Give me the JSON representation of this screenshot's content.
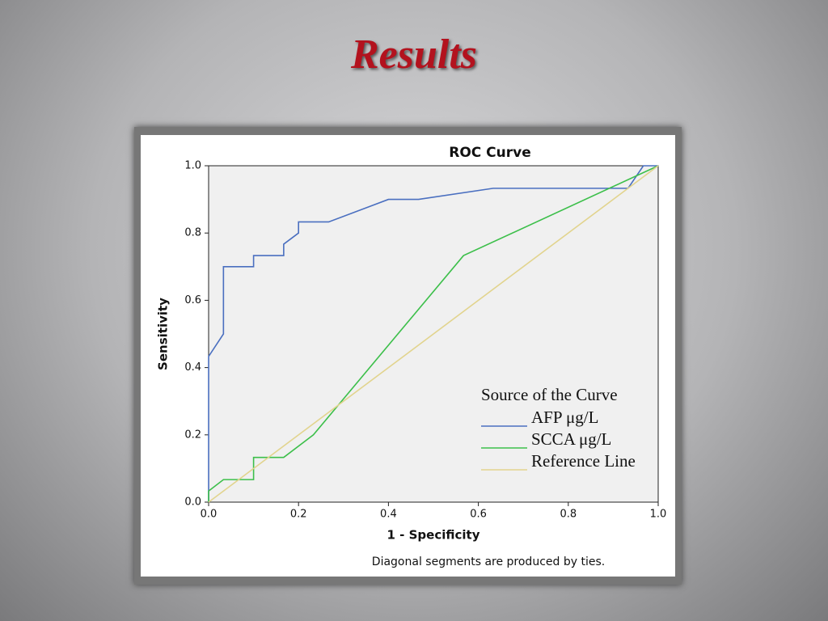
{
  "slide_title": "Results",
  "chart_data": {
    "type": "line",
    "title": "ROC Curve",
    "x_label": "1 - Specificity",
    "y_label": "Sensitivity",
    "footnote": "Diagonal segments are produced by ties.",
    "legend_title": "Source of the Curve",
    "xlim": [
      0,
      1
    ],
    "ylim": [
      0,
      1
    ],
    "xticks": [
      {
        "value": 0,
        "label": "0.0"
      },
      0.2,
      0.4,
      0.6,
      0.8,
      {
        "value": 1,
        "label": "1.0"
      }
    ],
    "yticks": [
      {
        "value": 0,
        "label": "0.0"
      },
      0.2,
      0.4,
      0.6,
      0.8,
      {
        "value": 1,
        "label": "1.0"
      }
    ],
    "series": [
      {
        "name": "AFP μg/L",
        "color": "#4a6fc0",
        "x": [
          0,
          0,
          0.033,
          0.033,
          0.1,
          0.1,
          0.167,
          0.167,
          0.2,
          0.2,
          0.267,
          0.4,
          0.467,
          0.633,
          0.933,
          0.967,
          1
        ],
        "values": [
          0,
          0.433,
          0.5,
          0.7,
          0.7,
          0.733,
          0.733,
          0.767,
          0.8,
          0.833,
          0.833,
          0.9,
          0.9,
          0.933,
          0.933,
          1,
          1
        ]
      },
      {
        "name": "SCCA μg/L",
        "color": "#3cbf4a",
        "x": [
          0,
          0,
          0.033,
          0.1,
          0.1,
          0.167,
          0.233,
          0.567,
          1
        ],
        "values": [
          0,
          0.033,
          0.067,
          0.067,
          0.133,
          0.133,
          0.2,
          0.733,
          1
        ]
      },
      {
        "name": "Reference Line",
        "color": "#e2d48e",
        "x": [
          0,
          1
        ],
        "values": [
          0,
          1
        ]
      }
    ]
  }
}
